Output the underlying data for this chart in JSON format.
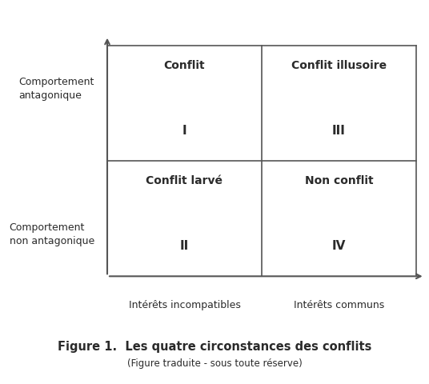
{
  "title": "Figure 1.  Les quatre circonstances des conflits",
  "subtitle": "(Figure traduite - sous toute réserve)",
  "quadrant_titles": {
    "TL": "Conflit",
    "TR": "Conflit illusoire",
    "BL": "Conflit larvé",
    "BR": "Non conflit"
  },
  "quadrant_numerals": {
    "TL": "I",
    "TR": "III",
    "BL": "II",
    "BR": "IV"
  },
  "y_labels": {
    "top": "Comportement\nantagonique",
    "bottom": "Comportement\nnon antagonique"
  },
  "x_labels": {
    "left": "Intérêts incompatibles",
    "right": "Intérêts communs"
  },
  "background_color": "#ffffff",
  "line_color": "#555555",
  "text_color": "#2a2a2a",
  "title_fontsize": 10.5,
  "subtitle_fontsize": 8.5,
  "ylabel_fontsize": 9,
  "xlabel_fontsize": 9,
  "quadrant_title_fontsize": 10,
  "numeral_fontsize": 11
}
